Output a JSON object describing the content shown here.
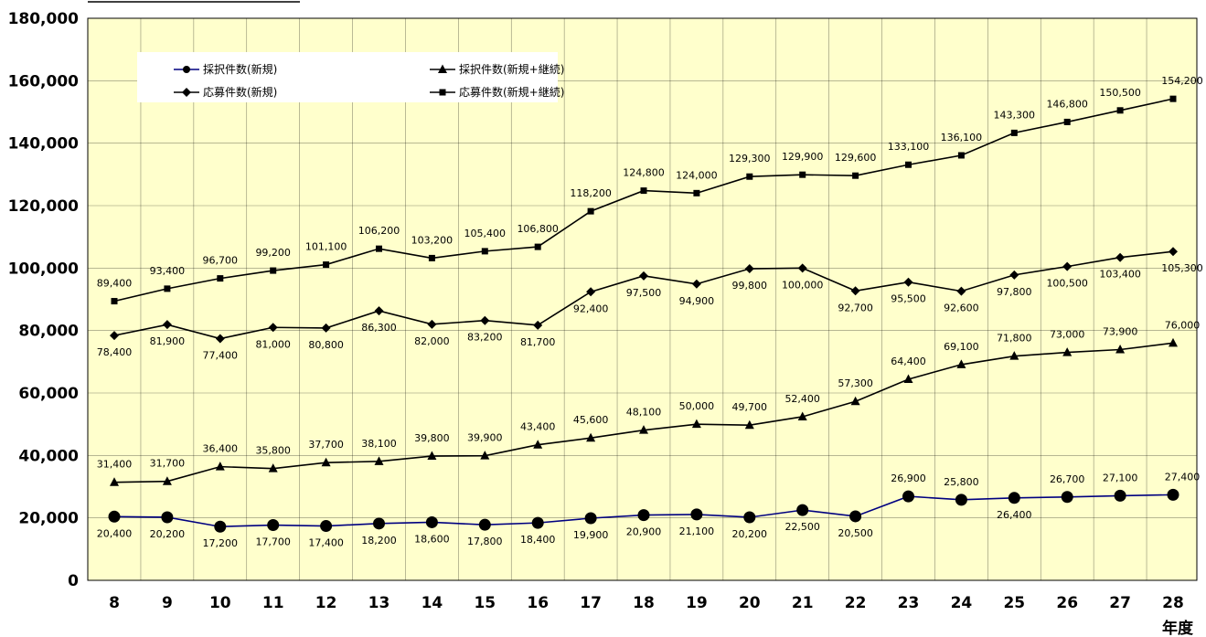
{
  "chart_data": {
    "type": "line",
    "title": "",
    "xlabel": "年度",
    "ylabel": "",
    "ylim": [
      0,
      180000
    ],
    "y_ticks": [
      "0",
      "20,000",
      "40,000",
      "60,000",
      "80,000",
      "100,000",
      "120,000",
      "140,000",
      "160,000",
      "180,000"
    ],
    "categories": [
      "8",
      "9",
      "10",
      "11",
      "12",
      "13",
      "14",
      "15",
      "16",
      "17",
      "18",
      "19",
      "20",
      "21",
      "22",
      "23",
      "24",
      "25",
      "26",
      "27",
      "28"
    ],
    "grid": true,
    "legend_position": "top-left",
    "plot_background": "#ffffcc",
    "series": [
      {
        "name": "採択件数(新規)",
        "marker": "circle",
        "color": "#000080",
        "values": [
          20400,
          20200,
          17200,
          17700,
          17400,
          18200,
          18600,
          17800,
          18400,
          19900,
          20900,
          21100,
          20200,
          22500,
          20500,
          26900,
          25800,
          26400,
          26700,
          27100,
          27400
        ],
        "labels": [
          "20,400",
          "20,200",
          "17,200",
          "17,700",
          "17,400",
          "18,200",
          "18,600",
          "17,800",
          "18,400",
          "19,900",
          "20,900",
          "21,100",
          "20,200",
          "22,500",
          "20,500",
          "26,900",
          "25,800",
          "26,400",
          "26,700",
          "27,100",
          "27,400"
        ]
      },
      {
        "name": "採択件数(新規+継続)",
        "marker": "triangle",
        "color": "#000000",
        "values": [
          31400,
          31700,
          36400,
          35800,
          37700,
          38100,
          39800,
          39900,
          43400,
          45600,
          48100,
          50000,
          49700,
          52400,
          57300,
          64400,
          69100,
          71800,
          73000,
          73900,
          76000
        ],
        "labels": [
          "31,400",
          "31,700",
          "36,400",
          "35,800",
          "37,700",
          "38,100",
          "39,800",
          "39,900",
          "43,400",
          "45,600",
          "48,100",
          "50,000",
          "49,700",
          "52,400",
          "57,300",
          "64,400",
          "69,100",
          "71,800",
          "73,000",
          "73,900",
          "76,000"
        ]
      },
      {
        "name": "応募件数(新規)",
        "marker": "diamond",
        "color": "#000000",
        "values": [
          78400,
          81900,
          77400,
          81000,
          80800,
          86300,
          82000,
          83200,
          81700,
          92400,
          97500,
          94900,
          99800,
          100000,
          92700,
          95500,
          92600,
          97800,
          100500,
          103400,
          105300
        ],
        "labels": [
          "78,400",
          "81,900",
          "77,400",
          "81,000",
          "80,800",
          "86,300",
          "82,000",
          "83,200",
          "81,700",
          "92,400",
          "97,500",
          "94,900",
          "99,800",
          "100,000",
          "92,700",
          "95,500",
          "92,600",
          "97,800",
          "100,500",
          "103,400",
          "105,300"
        ]
      },
      {
        "name": "応募件数(新規+継続)",
        "marker": "square",
        "color": "#000000",
        "values": [
          89400,
          93400,
          96700,
          99200,
          101100,
          106200,
          103200,
          105400,
          106800,
          118200,
          124800,
          124000,
          129300,
          129900,
          129600,
          133100,
          136100,
          143300,
          146800,
          150500,
          154200
        ],
        "labels": [
          "89,400",
          "93,400",
          "96,700",
          "99,200",
          "101,100",
          "106,200",
          "103,200",
          "105,400",
          "106,800",
          "118,200",
          "124,800",
          "124,000",
          "129,300",
          "129,900",
          "129,600",
          "133,100",
          "136,100",
          "143,300",
          "146,800",
          "150,500",
          "154,200"
        ]
      }
    ]
  }
}
